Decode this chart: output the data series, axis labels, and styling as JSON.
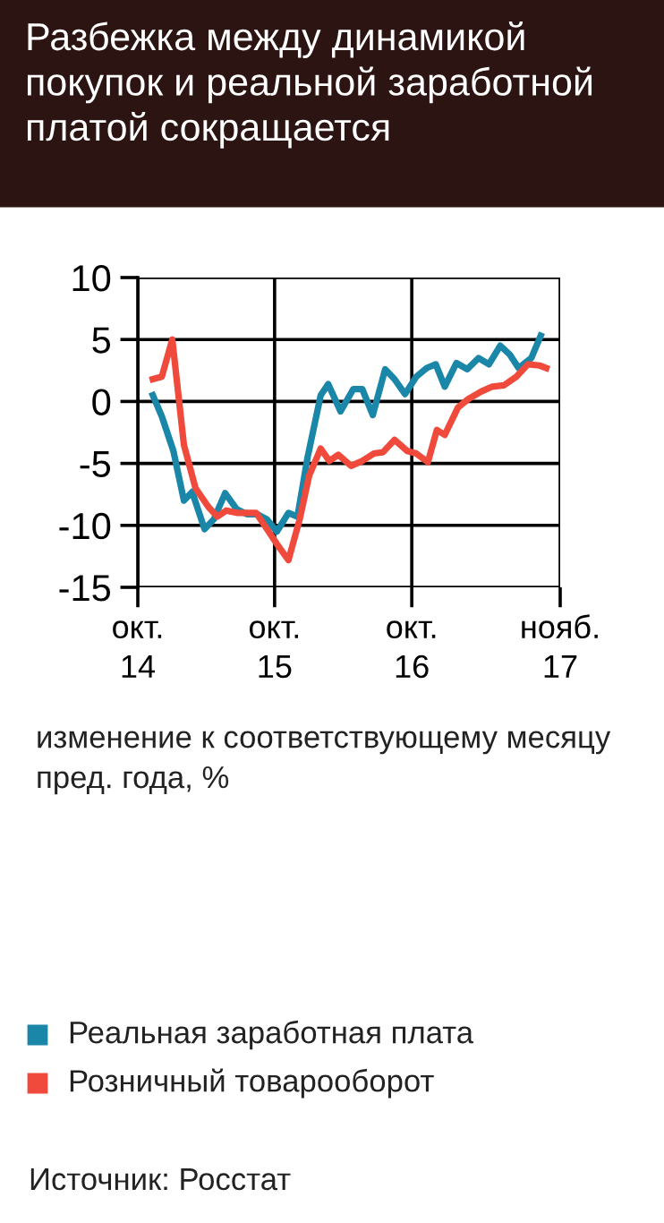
{
  "chart_data": {
    "type": "line",
    "title": "Разбежка между динамикой покупок и реальной заработной платой сокращается",
    "ylabel": "изменение к соответствующему месяцу пред. года, %",
    "annotations": [
      "Источник: Росстат"
    ],
    "xlim": [
      "2014-10",
      "2017-11"
    ],
    "xticks": [
      {
        "value": "2014-10",
        "label": "окт.\n14"
      },
      {
        "value": "2015-10",
        "label": "окт.\n15"
      },
      {
        "value": "2016-10",
        "label": "окт.\n16"
      },
      {
        "value": "2017-11",
        "label": "нояб.\n17"
      }
    ],
    "ylim": [
      -15,
      10
    ],
    "yticks": [
      10,
      5,
      0,
      -5,
      -10,
      -15
    ],
    "grid": true,
    "legend": "bottom",
    "line_style": "solid",
    "marker": "none",
    "series": [
      {
        "name": "Реальная заработная плата",
        "color": "#1a86a8",
        "x": [
          "2014-11-10",
          "2014-12-04",
          "2015-01-04",
          "2015-02-01",
          "2015-02-23",
          "2015-03-28",
          "2015-04-22",
          "2015-05-22",
          "2015-06-22",
          "2015-07-19",
          "2015-08-16",
          "2015-09-10",
          "2015-10-07",
          "2015-11-07",
          "2015-12-01",
          "2015-12-28",
          "2016-02-01",
          "2016-02-21",
          "2016-03-25",
          "2016-04-28",
          "2016-05-22",
          "2016-06-19",
          "2016-07-22",
          "2016-08-16",
          "2016-09-13",
          "2016-10-13",
          "2016-11-10",
          "2016-12-04",
          "2016-12-28",
          "2017-01-28",
          "2017-02-26",
          "2017-03-28",
          "2017-04-25",
          "2017-05-25",
          "2017-06-19",
          "2017-07-13",
          "2017-08-16",
          "2017-09-10"
        ],
        "values": [
          0.5,
          -1.2,
          -4,
          -8,
          -7.3,
          -10.3,
          -9.5,
          -7.4,
          -8.7,
          -9.1,
          -9.1,
          -9.5,
          -10.5,
          -9,
          -9.3,
          -4.5,
          0.5,
          1.4,
          -0.8,
          1,
          1,
          -1.1,
          2.6,
          1.8,
          0.6,
          2,
          2.7,
          3,
          1.2,
          3.1,
          2.6,
          3.5,
          3,
          4.5,
          3.8,
          2.7,
          3.5,
          5.3
        ]
      },
      {
        "name": "Розничный товарооборот",
        "color": "#f04a3c",
        "x": [
          "2014-11-10",
          "2014-12-04",
          "2015-01-01",
          "2015-02-01",
          "2015-03-04",
          "2015-04-07",
          "2015-05-01",
          "2015-05-25",
          "2015-06-25",
          "2015-08-13",
          "2015-09-04",
          "2015-10-07",
          "2015-11-07",
          "2015-12-07",
          "2016-01-01",
          "2016-02-01",
          "2016-02-24",
          "2016-03-19",
          "2016-04-22",
          "2016-05-22",
          "2016-06-22",
          "2016-07-16",
          "2016-08-16",
          "2016-09-19",
          "2016-10-13",
          "2016-11-13",
          "2016-12-07",
          "2016-12-28",
          "2017-02-01",
          "2017-03-01",
          "2017-04-04",
          "2017-05-04",
          "2017-06-04",
          "2017-07-07",
          "2017-08-07",
          "2017-09-07",
          "2017-09-25"
        ],
        "values": [
          1.8,
          2,
          5,
          -3.5,
          -7,
          -8.5,
          -9.3,
          -8.8,
          -9,
          -9,
          -10,
          -11.5,
          -12.8,
          -9.5,
          -6,
          -3.8,
          -4.8,
          -4.3,
          -5.2,
          -4.8,
          -4.2,
          -4.1,
          -3.1,
          -4,
          -4.2,
          -4.9,
          -2.3,
          -2.7,
          -0.5,
          0.2,
          0.8,
          1.2,
          1.3,
          2,
          3,
          2.9,
          2.7
        ]
      }
    ]
  }
}
